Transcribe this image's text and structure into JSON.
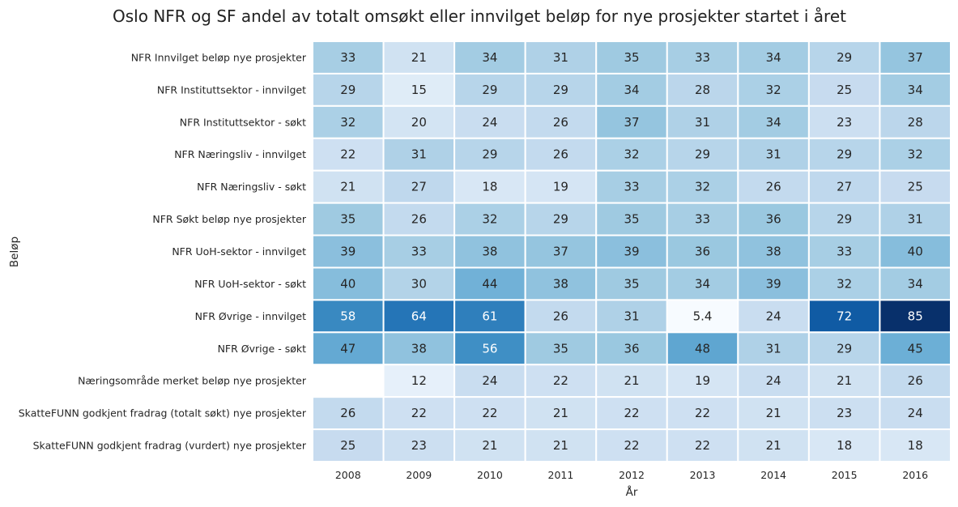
{
  "chart_data": {
    "type": "heatmap",
    "title": "Oslo NFR og SF andel av totalt omsøkt eller innvilget beløp for nye prosjekter startet i året",
    "xlabel": "År",
    "ylabel": "Beløp",
    "legend": "none",
    "columns": [
      "2008",
      "2009",
      "2010",
      "2011",
      "2012",
      "2013",
      "2014",
      "2015",
      "2016"
    ],
    "rows": [
      "NFR Innvilget beløp nye prosjekter",
      "NFR Instituttsektor - innvilget",
      "NFR Instituttsektor - søkt",
      "NFR Næringsliv - innvilget",
      "NFR Næringsliv - søkt",
      "NFR Søkt beløp nye prosjekter",
      "NFR UoH-sektor - innvilget",
      "NFR UoH-sektor - søkt",
      "NFR Øvrige - innvilget",
      "NFR Øvrige - søkt",
      "Næringsområde merket beløp nye prosjekter",
      "SkatteFUNN godkjent fradrag (totalt søkt) nye prosjekter",
      "SkatteFUNN godkjent fradrag (vurdert) nye prosjekter"
    ],
    "values": [
      [
        33,
        21,
        34,
        31,
        35,
        33,
        34,
        29,
        37
      ],
      [
        29,
        15,
        29,
        29,
        34,
        28,
        32,
        25,
        34
      ],
      [
        32,
        20,
        24,
        26,
        37,
        31,
        34,
        23,
        28
      ],
      [
        22,
        31,
        29,
        26,
        32,
        29,
        31,
        29,
        32
      ],
      [
        21,
        27,
        18,
        19,
        33,
        32,
        26,
        27,
        25
      ],
      [
        35,
        26,
        32,
        29,
        35,
        33,
        36,
        29,
        31
      ],
      [
        39,
        33,
        38,
        37,
        39,
        36,
        38,
        33,
        40
      ],
      [
        40,
        30,
        44,
        38,
        35,
        34,
        39,
        32,
        34
      ],
      [
        58,
        64,
        61,
        26,
        31,
        5.4,
        24,
        72,
        85
      ],
      [
        47,
        38,
        56,
        35,
        36,
        48,
        31,
        29,
        45
      ],
      [
        null,
        12,
        24,
        22,
        21,
        19,
        24,
        21,
        26
      ],
      [
        26,
        22,
        22,
        21,
        22,
        22,
        21,
        23,
        24
      ],
      [
        25,
        23,
        21,
        21,
        22,
        22,
        21,
        18,
        18
      ]
    ],
    "colormap": "Blues",
    "value_range": [
      5.4,
      85
    ]
  }
}
